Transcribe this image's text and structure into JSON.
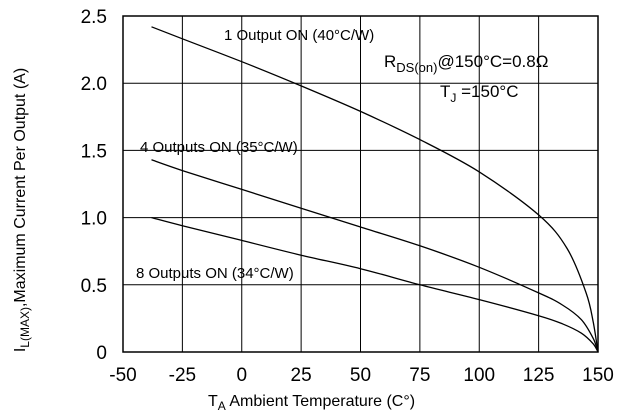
{
  "chart_data": {
    "type": "line",
    "xlim": [
      -50,
      150
    ],
    "ylim": [
      0,
      2.5
    ],
    "x_ticks": [
      "-50",
      "-25",
      "0",
      "25",
      "50",
      "75",
      "100",
      "125",
      "150"
    ],
    "y_ticks": [
      "0",
      "0.5",
      "1.0",
      "1.5",
      "2.0",
      "2.5"
    ],
    "grid": true,
    "xlabel": {
      "main": "T",
      "sub": "A",
      "rest": " Ambient Temperature (C°)"
    },
    "ylabel": {
      "pre": "I",
      "sub": "L(MAX)",
      "rest": ",Maximum Current Per Output (A)"
    },
    "series": [
      {
        "name": "1 Output ON (40°C/W)",
        "points": [
          [
            -38,
            2.42
          ],
          [
            -25,
            2.33
          ],
          [
            0,
            2.16
          ],
          [
            25,
            1.98
          ],
          [
            50,
            1.79
          ],
          [
            75,
            1.58
          ],
          [
            100,
            1.34
          ],
          [
            125,
            1.02
          ],
          [
            137,
            0.77
          ],
          [
            145,
            0.44
          ],
          [
            148,
            0.22
          ],
          [
            150,
            0.0
          ]
        ]
      },
      {
        "name": "4 Outputs ON (35°C/W)",
        "points": [
          [
            -38,
            1.43
          ],
          [
            -25,
            1.35
          ],
          [
            0,
            1.21
          ],
          [
            25,
            1.07
          ],
          [
            50,
            0.93
          ],
          [
            75,
            0.79
          ],
          [
            100,
            0.63
          ],
          [
            125,
            0.44
          ],
          [
            135,
            0.35
          ],
          [
            143,
            0.24
          ],
          [
            148,
            0.1
          ],
          [
            150,
            0.0
          ]
        ]
      },
      {
        "name": "8 Outputs ON (34°C/W)",
        "points": [
          [
            -38,
            1.0
          ],
          [
            -25,
            0.94
          ],
          [
            0,
            0.83
          ],
          [
            25,
            0.72
          ],
          [
            50,
            0.62
          ],
          [
            75,
            0.5
          ],
          [
            100,
            0.39
          ],
          [
            125,
            0.27
          ],
          [
            135,
            0.21
          ],
          [
            143,
            0.14
          ],
          [
            148,
            0.06
          ],
          [
            150,
            0.0
          ]
        ]
      }
    ],
    "annotations": {
      "rds_main": "R",
      "rds_sub": "DS(on)",
      "rds_rest": "@150°C=0.8Ω",
      "tj_main": "T",
      "tj_sub": "J",
      "tj_rest": " =150°C"
    }
  }
}
